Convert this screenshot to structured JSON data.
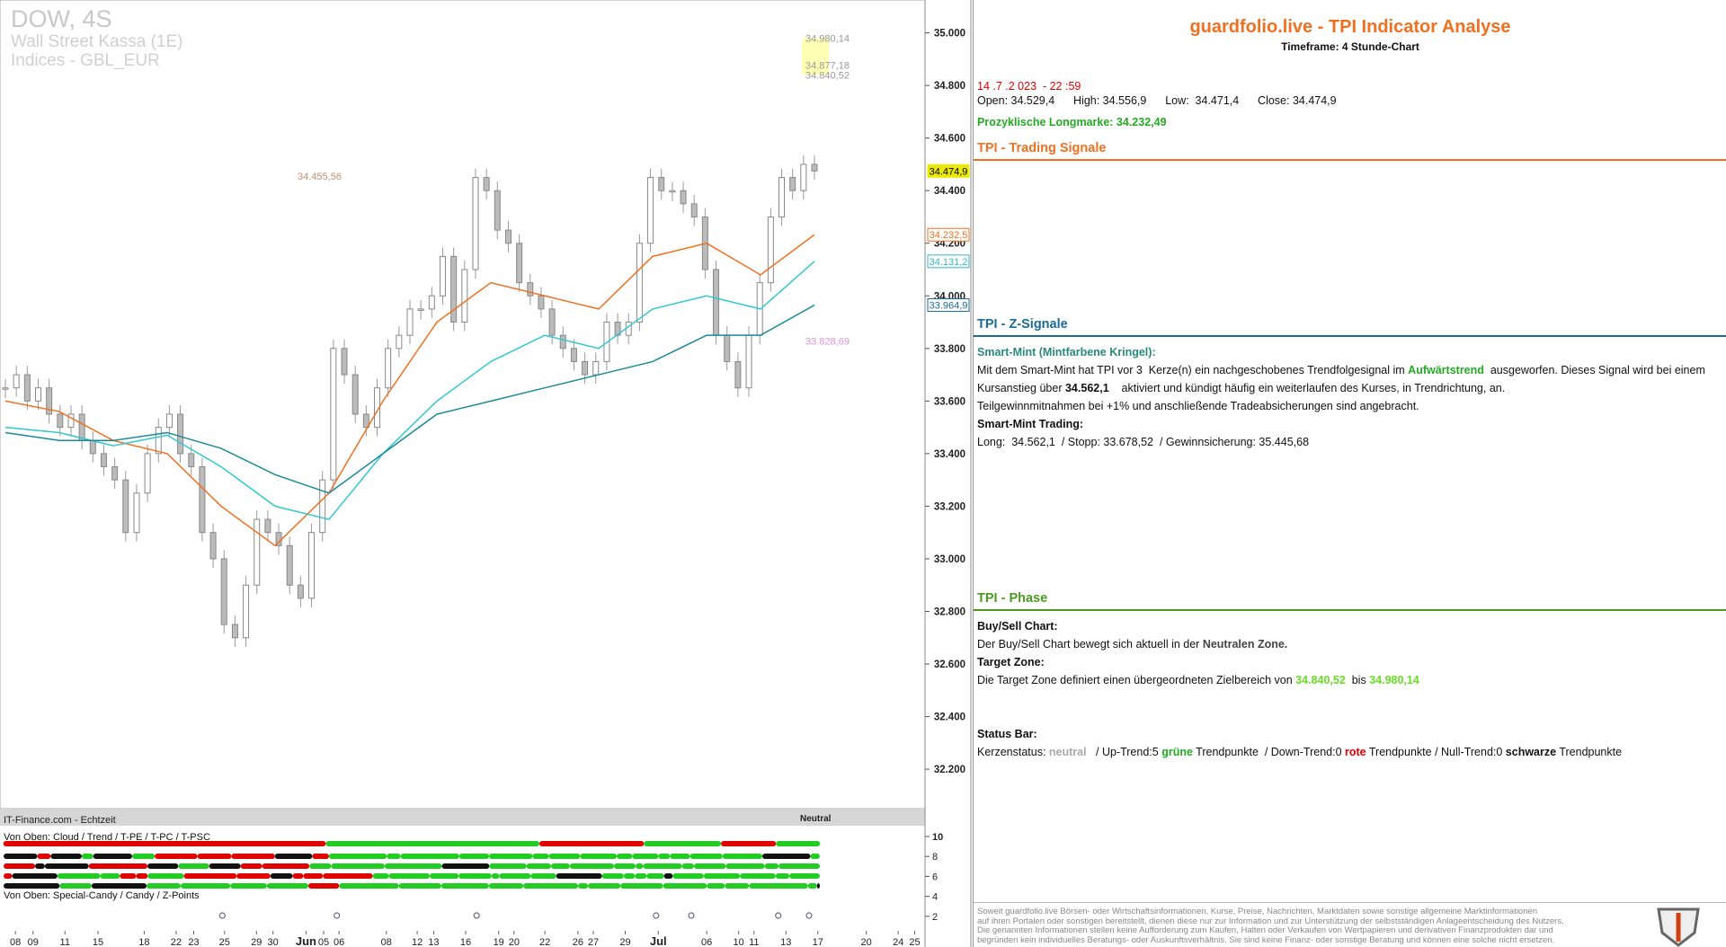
{
  "chart": {
    "symbol": "DOW, 4S",
    "instrument": "Wall Street Kassa (1E)",
    "market": "Indices - GBL_EUR",
    "ylim": [
      32050,
      35125
    ],
    "price_ticks": [
      {
        "value": 35000,
        "label": "35.000"
      },
      {
        "value": 34800,
        "label": "34.800"
      },
      {
        "value": 34600,
        "label": "34.600"
      },
      {
        "value": 34400,
        "label": "34.400"
      },
      {
        "value": 34200,
        "label": "34.200"
      },
      {
        "value": 34000,
        "label": "34.000"
      },
      {
        "value": 33800,
        "label": "33.800"
      },
      {
        "value": 33600,
        "label": "33.600"
      },
      {
        "value": 33400,
        "label": "33.400"
      },
      {
        "value": 33200,
        "label": "33.200"
      },
      {
        "value": 33000,
        "label": "33.000"
      },
      {
        "value": 32800,
        "label": "32.800"
      },
      {
        "value": 32600,
        "label": "32.600"
      },
      {
        "value": 32400,
        "label": "32.400"
      },
      {
        "value": 32200,
        "label": "32.200"
      }
    ],
    "price_labels": [
      {
        "value": 34474.9,
        "label": "34.474,9",
        "color": "#e8e800"
      },
      {
        "value": 34232.5,
        "label": "34.232,5",
        "color": "#f07020"
      },
      {
        "value": 34131.2,
        "label": "34.131,2",
        "color": "#30b8c8"
      },
      {
        "value": 33964.9,
        "label": "33.964,9",
        "color": "#1a6a9a"
      }
    ],
    "annotations": [
      {
        "value": 34980.14,
        "label": "34.980,14"
      },
      {
        "value": 34877.18,
        "label": "34.877,18"
      },
      {
        "value": 34840.52,
        "label": "34.840,52"
      },
      {
        "value": 34455.56,
        "label": "34.455,56"
      },
      {
        "value": 33828.69,
        "label": "33.828,69"
      }
    ],
    "close": [
      33650,
      33700,
      33600,
      33650,
      33550,
      33500,
      33550,
      33450,
      33400,
      33350,
      33300,
      33100,
      33250,
      33400,
      33500,
      33550,
      33400,
      33350,
      33100,
      33000,
      32750,
      32700,
      32900,
      33150,
      33100,
      33050,
      32900,
      32850,
      33100,
      33300,
      33800,
      33700,
      33550,
      33500,
      33650,
      33800,
      33850,
      33950,
      33950,
      34000,
      34150,
      33900,
      34100,
      34450,
      34400,
      34250,
      34200,
      34050,
      34000,
      33950,
      33850,
      33800,
      33750,
      33700,
      33750,
      33900,
      33850,
      33900,
      34200,
      34450,
      34400,
      34400,
      34350,
      34300,
      34100,
      33850,
      33750,
      33650,
      33850,
      34050,
      34300,
      34450,
      34400,
      34500,
      34474.9
    ],
    "averages": [
      {
        "color": "#f07020",
        "values": [
          33600,
          33560,
          33450,
          33400,
          33200,
          33050,
          33250,
          33600,
          33900,
          34050,
          34000,
          33950,
          34150,
          34200,
          34080,
          34232.5
        ]
      },
      {
        "color": "#30c8d0",
        "values": [
          33500,
          33480,
          33430,
          33470,
          33350,
          33200,
          33150,
          33400,
          33600,
          33750,
          33850,
          33800,
          33950,
          34000,
          33950,
          34131.2
        ]
      },
      {
        "color": "#1a8a9a",
        "values": [
          33480,
          33450,
          33450,
          33480,
          33420,
          33320,
          33250,
          33400,
          33550,
          33600,
          33650,
          33700,
          33750,
          33850,
          33850,
          33964.9
        ]
      }
    ],
    "dates": [
      "08",
      "09",
      "11",
      "15",
      "18",
      "22",
      "23",
      "25",
      "29",
      "30",
      "Jun",
      "05",
      "06",
      "08",
      "12",
      "13",
      "16",
      "19",
      "20",
      "22",
      "26",
      "27",
      "29",
      "Jul",
      "06",
      "10",
      "11",
      "13",
      "17",
      "20",
      "24",
      "25"
    ],
    "source": "IT-Finance.com - Echtzeit",
    "status": "Neutral",
    "bar_title_1": "Von Oben: Cloud / Trend / T-PE / T-PC / T-PSC",
    "bar_title_2": "Von Oben: Special-Candy / Candy / Z-Points",
    "indicator_ylim": [
      0,
      10
    ],
    "indicator_ticks": [
      10,
      8,
      6,
      4,
      2
    ]
  },
  "panel": {
    "title": "guardfolio.live - TPI Indicator Analyse",
    "timeframe": "Timeframe: 4 Stunde-Chart",
    "datetime": "14 .7 .2 023  - 22 :59",
    "ohlc": [
      "Open: 34.529,4",
      "High: 34.556,9",
      "Low:  34.471,4",
      "Close: 34.474,9"
    ],
    "longmark": "Prozyklische Longmarke: 34.232,49",
    "sections": [
      "TPI - Trading Signale",
      "TPI - Z-Signale",
      "TPI - Phase"
    ],
    "z": {
      "heading": "Smart-Mint (Mintfarbene Kringel):",
      "p1": [
        "Mit dem Smart-Mint hat TPI vor 3  Kerze(n) ein nachgeschobenes Trendfolgesignal im ",
        "Aufwärtstrend",
        "  ausgeworfen. Dieses Signal wird bei einem"
      ],
      "p2": [
        "Kursanstieg über ",
        "34.562,1",
        "    aktiviert und kündigt häufig ein weiterlaufen des Kurses, in Trendrichtung, an."
      ],
      "p3": "Teilgewinnmitnahmen bei +1% und anschließende Tradeabsicherungen sind angebracht.",
      "trading_heading": "Smart-Mint Trading:",
      "trading": "Long:  34.562,1  / Stopp: 33.678,52  / Gewinnsicherung: 35.445,68"
    },
    "phase": {
      "bs_heading": "Buy/Sell Chart:",
      "bs": [
        "Der Buy/Sell Chart bewegt sich aktuell in der ",
        "Neutralen Zone."
      ],
      "tz_heading": "Target Zone:",
      "tz": [
        "Die Target Zone definiert einen übergeordneten Zielbereich von ",
        "34.840,52",
        "  bis ",
        "34.980,14"
      ],
      "sb_heading": "Status Bar:",
      "sb": [
        "Kerzenstatus: ",
        "neutral",
        "   / Up-Trend:5 ",
        "grüne",
        " Trendpunkte  / Down-Trend:0 ",
        "rote",
        " Trendpunkte / Null-Trend:0 ",
        "schwarze",
        " Trendpunkte"
      ]
    },
    "disclaimer": [
      "Soweit guardfolio.live Börsen- oder Wirtschaftsinformationen, Kurse, Preise, Nachrichten, Marktdaten sowie sonstige allgemeine Marktinformationen",
      "auf ihren Portalen oder sonstigen bereitstellt, dienen diese nur zur Information und zur Unterstützung der selbstständigen Anlageentscheidung des Nutzers.",
      "Die genannten Informationen stellen keine Aufforderung zum Kaufen, Halten oder Verkaufen von Wertpapieren und derivativen Finanzprodukten dar und",
      "begründen kein individuelles Beratungs- oder Auskunftsverhältnis. Sie sind keine Finanz- oder sonstige Beratung und können eine solche nicht ersetzen."
    ]
  }
}
